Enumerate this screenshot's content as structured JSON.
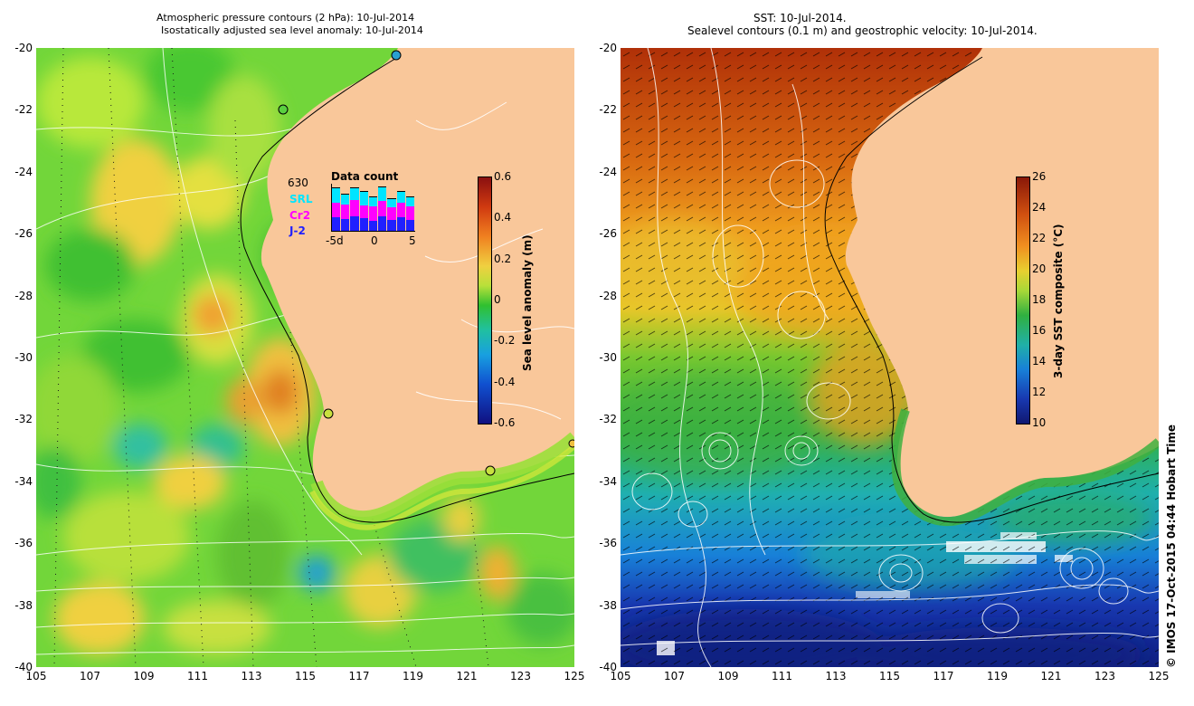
{
  "left_map": {
    "title_line1": "Atmospheric pressure contours (2 hPa): 10-Jul-2014",
    "title_line2": "Isostatically adjusted sea level anomaly: 10-Jul-2014",
    "y_ticks": [
      "-20",
      "-22",
      "-24",
      "-26",
      "-28",
      "-30",
      "-32",
      "-34",
      "-36",
      "-38",
      "-40"
    ],
    "x_ticks": [
      "105",
      "107",
      "109",
      "111",
      "113",
      "115",
      "117",
      "119",
      "121",
      "123",
      "125"
    ],
    "colorbar": {
      "label": "Sea level anomaly (m)",
      "ticks": [
        "0.6",
        "0.4",
        "0.2",
        "0",
        "-0.2",
        "-0.4",
        "-0.6"
      ],
      "range": [
        -0.6,
        0.6
      ]
    },
    "data_count": {
      "title": "Data count",
      "max": "630",
      "series": [
        "SRL",
        "Cr2",
        "J-2"
      ],
      "series_colors": [
        "#00e5ff",
        "#ff00ff",
        "#2020ff"
      ],
      "x_ticks": [
        "-5d",
        "0",
        "5"
      ],
      "bars": [
        {
          "j2": 0.28,
          "cr2": 0.32,
          "srl": 0.3
        },
        {
          "j2": 0.25,
          "cr2": 0.3,
          "srl": 0.22
        },
        {
          "j2": 0.3,
          "cr2": 0.35,
          "srl": 0.25
        },
        {
          "j2": 0.26,
          "cr2": 0.28,
          "srl": 0.28
        },
        {
          "j2": 0.22,
          "cr2": 0.3,
          "srl": 0.2
        },
        {
          "j2": 0.3,
          "cr2": 0.34,
          "srl": 0.28
        },
        {
          "j2": 0.24,
          "cr2": 0.26,
          "srl": 0.18
        },
        {
          "j2": 0.28,
          "cr2": 0.32,
          "srl": 0.22
        },
        {
          "j2": 0.24,
          "cr2": 0.28,
          "srl": 0.2
        }
      ]
    }
  },
  "right_map": {
    "title_line1": "SST: 10-Jul-2014.",
    "title_line2": "Sealevel contours (0.1 m) and geostrophic velocity: 10-Jul-2014.",
    "y_ticks": [
      "-20",
      "-22",
      "-24",
      "-26",
      "-28",
      "-30",
      "-32",
      "-34",
      "-36",
      "-38",
      "-40"
    ],
    "x_ticks": [
      "105",
      "107",
      "109",
      "111",
      "113",
      "115",
      "117",
      "119",
      "121",
      "123",
      "125"
    ],
    "colorbar": {
      "label": "3-day SST composite (°C)",
      "ticks": [
        "26",
        "24",
        "22",
        "20",
        "18",
        "16",
        "14",
        "12",
        "10"
      ],
      "range": [
        10,
        26
      ]
    }
  },
  "credit": "© IMOS 17-Oct-2015 04:44 Hobart Time",
  "colors": {
    "land": "#f9c79a",
    "sla_base": "#6ad32a",
    "sst_warm": "#e07a10",
    "sst_cool": "#1aa0d0",
    "sst_cold": "#1030b0"
  }
}
